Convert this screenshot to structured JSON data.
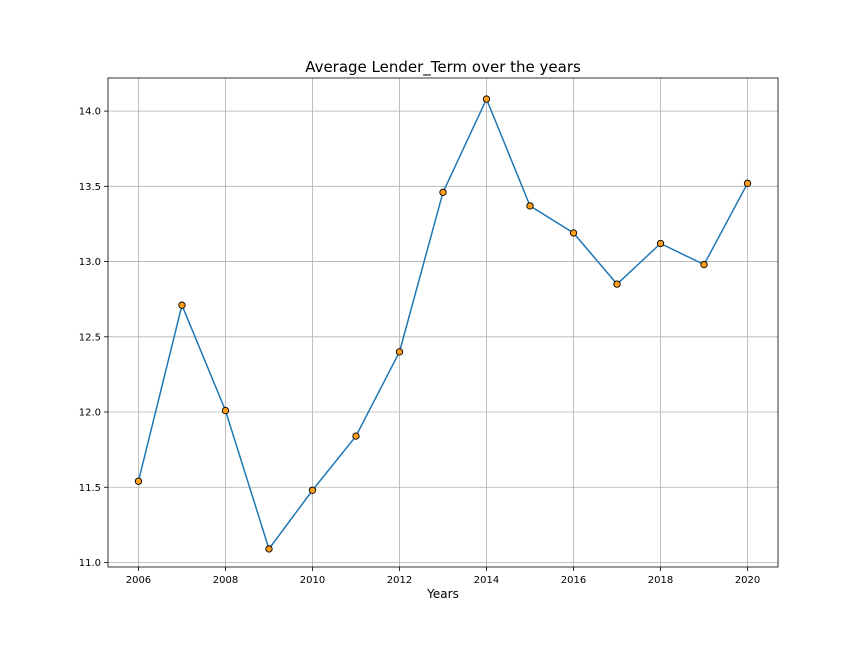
{
  "chart_data": {
    "type": "line",
    "title": "Average Lender_Term over the years",
    "xlabel": "Years",
    "ylabel": "",
    "xlim": [
      2005.3,
      2020.7
    ],
    "ylim": [
      10.97,
      14.22
    ],
    "x_ticks": [
      2006,
      2008,
      2010,
      2012,
      2014,
      2016,
      2018,
      2020
    ],
    "x_tick_labels": [
      "2006",
      "2008",
      "2010",
      "2012",
      "2014",
      "2016",
      "2018",
      "2020"
    ],
    "y_ticks": [
      11.0,
      11.5,
      12.0,
      12.5,
      13.0,
      13.5,
      14.0
    ],
    "y_tick_labels": [
      "11.0",
      "11.5",
      "12.0",
      "12.5",
      "13.0",
      "13.5",
      "14.0"
    ],
    "grid": true,
    "x": [
      2006,
      2007,
      2008,
      2009,
      2010,
      2011,
      2012,
      2013,
      2014,
      2015,
      2016,
      2017,
      2018,
      2019,
      2020
    ],
    "series": [
      {
        "values": [
          11.54,
          12.71,
          12.01,
          11.09,
          11.48,
          11.84,
          12.4,
          13.46,
          14.08,
          13.37,
          13.19,
          12.85,
          13.12,
          12.98,
          13.52
        ],
        "line_color": "#1f77b4",
        "marker_color": "#ff9f1c",
        "marker_edge_color": "#000000"
      }
    ]
  }
}
